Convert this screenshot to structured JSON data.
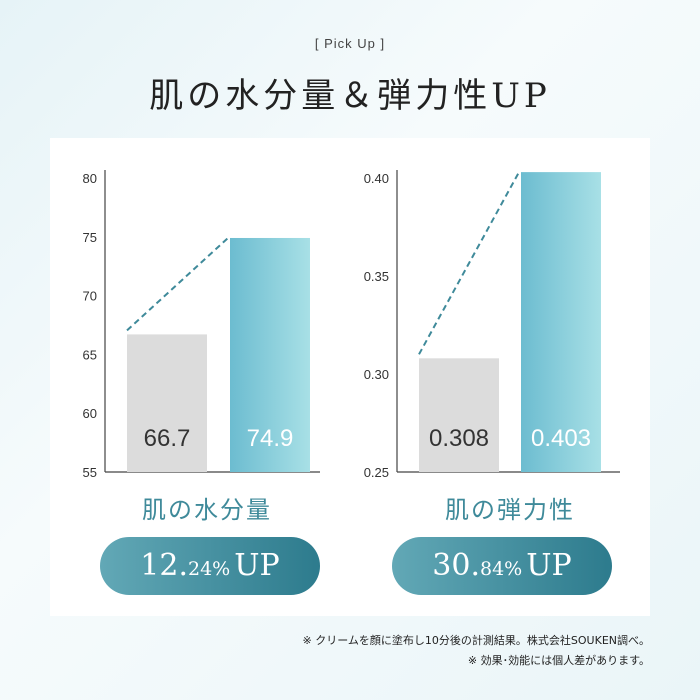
{
  "header": {
    "pickup": "[ Pick Up ]",
    "title": "肌の水分量＆弾力性UP"
  },
  "chart_data": [
    {
      "type": "bar",
      "categories": [
        "",
        ""
      ],
      "values": [
        66.7,
        74.9
      ],
      "value_labels": [
        "66.7",
        "74.9"
      ],
      "ylim": [
        55,
        80
      ],
      "yticks": [
        "55",
        "60",
        "65",
        "70",
        "75",
        "80"
      ],
      "title": "肌の水分量",
      "colors": [
        "#dcdcdc",
        "#7cc7d6"
      ],
      "grid": false
    },
    {
      "type": "bar",
      "categories": [
        "",
        ""
      ],
      "values": [
        0.308,
        0.403
      ],
      "value_labels": [
        "0.308",
        "0.403"
      ],
      "ylim": [
        0.25,
        0.4
      ],
      "yticks": [
        "0.25",
        "0.30",
        "0.35",
        "0.40"
      ],
      "title": "肌の弾力性",
      "colors": [
        "#dcdcdc",
        "#7cc7d6"
      ],
      "grid": false
    }
  ],
  "badges": [
    {
      "int": "12.",
      "dec": "24%",
      "up": "UP"
    },
    {
      "int": "30.",
      "dec": "84%",
      "up": "UP"
    }
  ],
  "notes": {
    "line1": "※ クリームを顔に塗布し10分後の計測結果。株式会社SOUKEN調べ。",
    "line2": "※ 効果･効能には個人差があります。"
  }
}
